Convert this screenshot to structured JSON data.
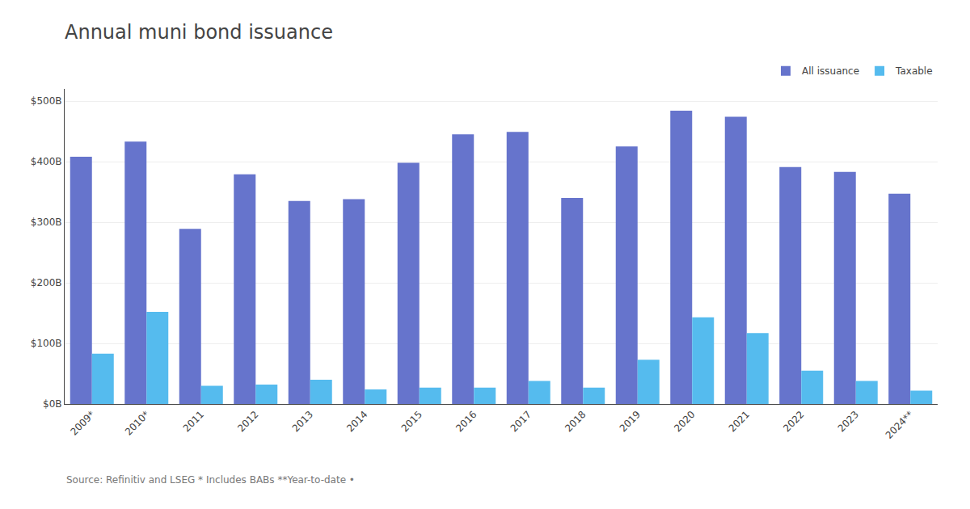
{
  "chart_data": {
    "type": "bar",
    "title": "Annual muni bond issuance",
    "categories": [
      "2009*",
      "2010*",
      "2011",
      "2012",
      "2013",
      "2014",
      "2015",
      "2016",
      "2017",
      "2018",
      "2019",
      "2020",
      "2021",
      "2022",
      "2023",
      "2024**"
    ],
    "series": [
      {
        "name": "All issuance",
        "color": "#6674CC",
        "values": [
          408,
          433,
          289,
          379,
          335,
          338,
          398,
          445,
          449,
          340,
          425,
          484,
          474,
          391,
          383,
          347
        ]
      },
      {
        "name": "Taxable",
        "color": "#55BBEE",
        "values": [
          83,
          152,
          30,
          32,
          40,
          24,
          27,
          27,
          38,
          27,
          73,
          143,
          117,
          55,
          38,
          22
        ]
      }
    ],
    "ylim": [
      0,
      520
    ],
    "yticks": [
      {
        "value": 0,
        "label": "$0B"
      },
      {
        "value": 100,
        "label": "$100B"
      },
      {
        "value": 200,
        "label": "$200B"
      },
      {
        "value": 300,
        "label": "$300B"
      },
      {
        "value": 400,
        "label": "$400B"
      },
      {
        "value": 500,
        "label": "$500B"
      }
    ],
    "grid": true,
    "legend": "upper right",
    "annotations": [
      "Source: Refinitiv and LSEG * Includes BABs **Year-to-date •"
    ]
  }
}
